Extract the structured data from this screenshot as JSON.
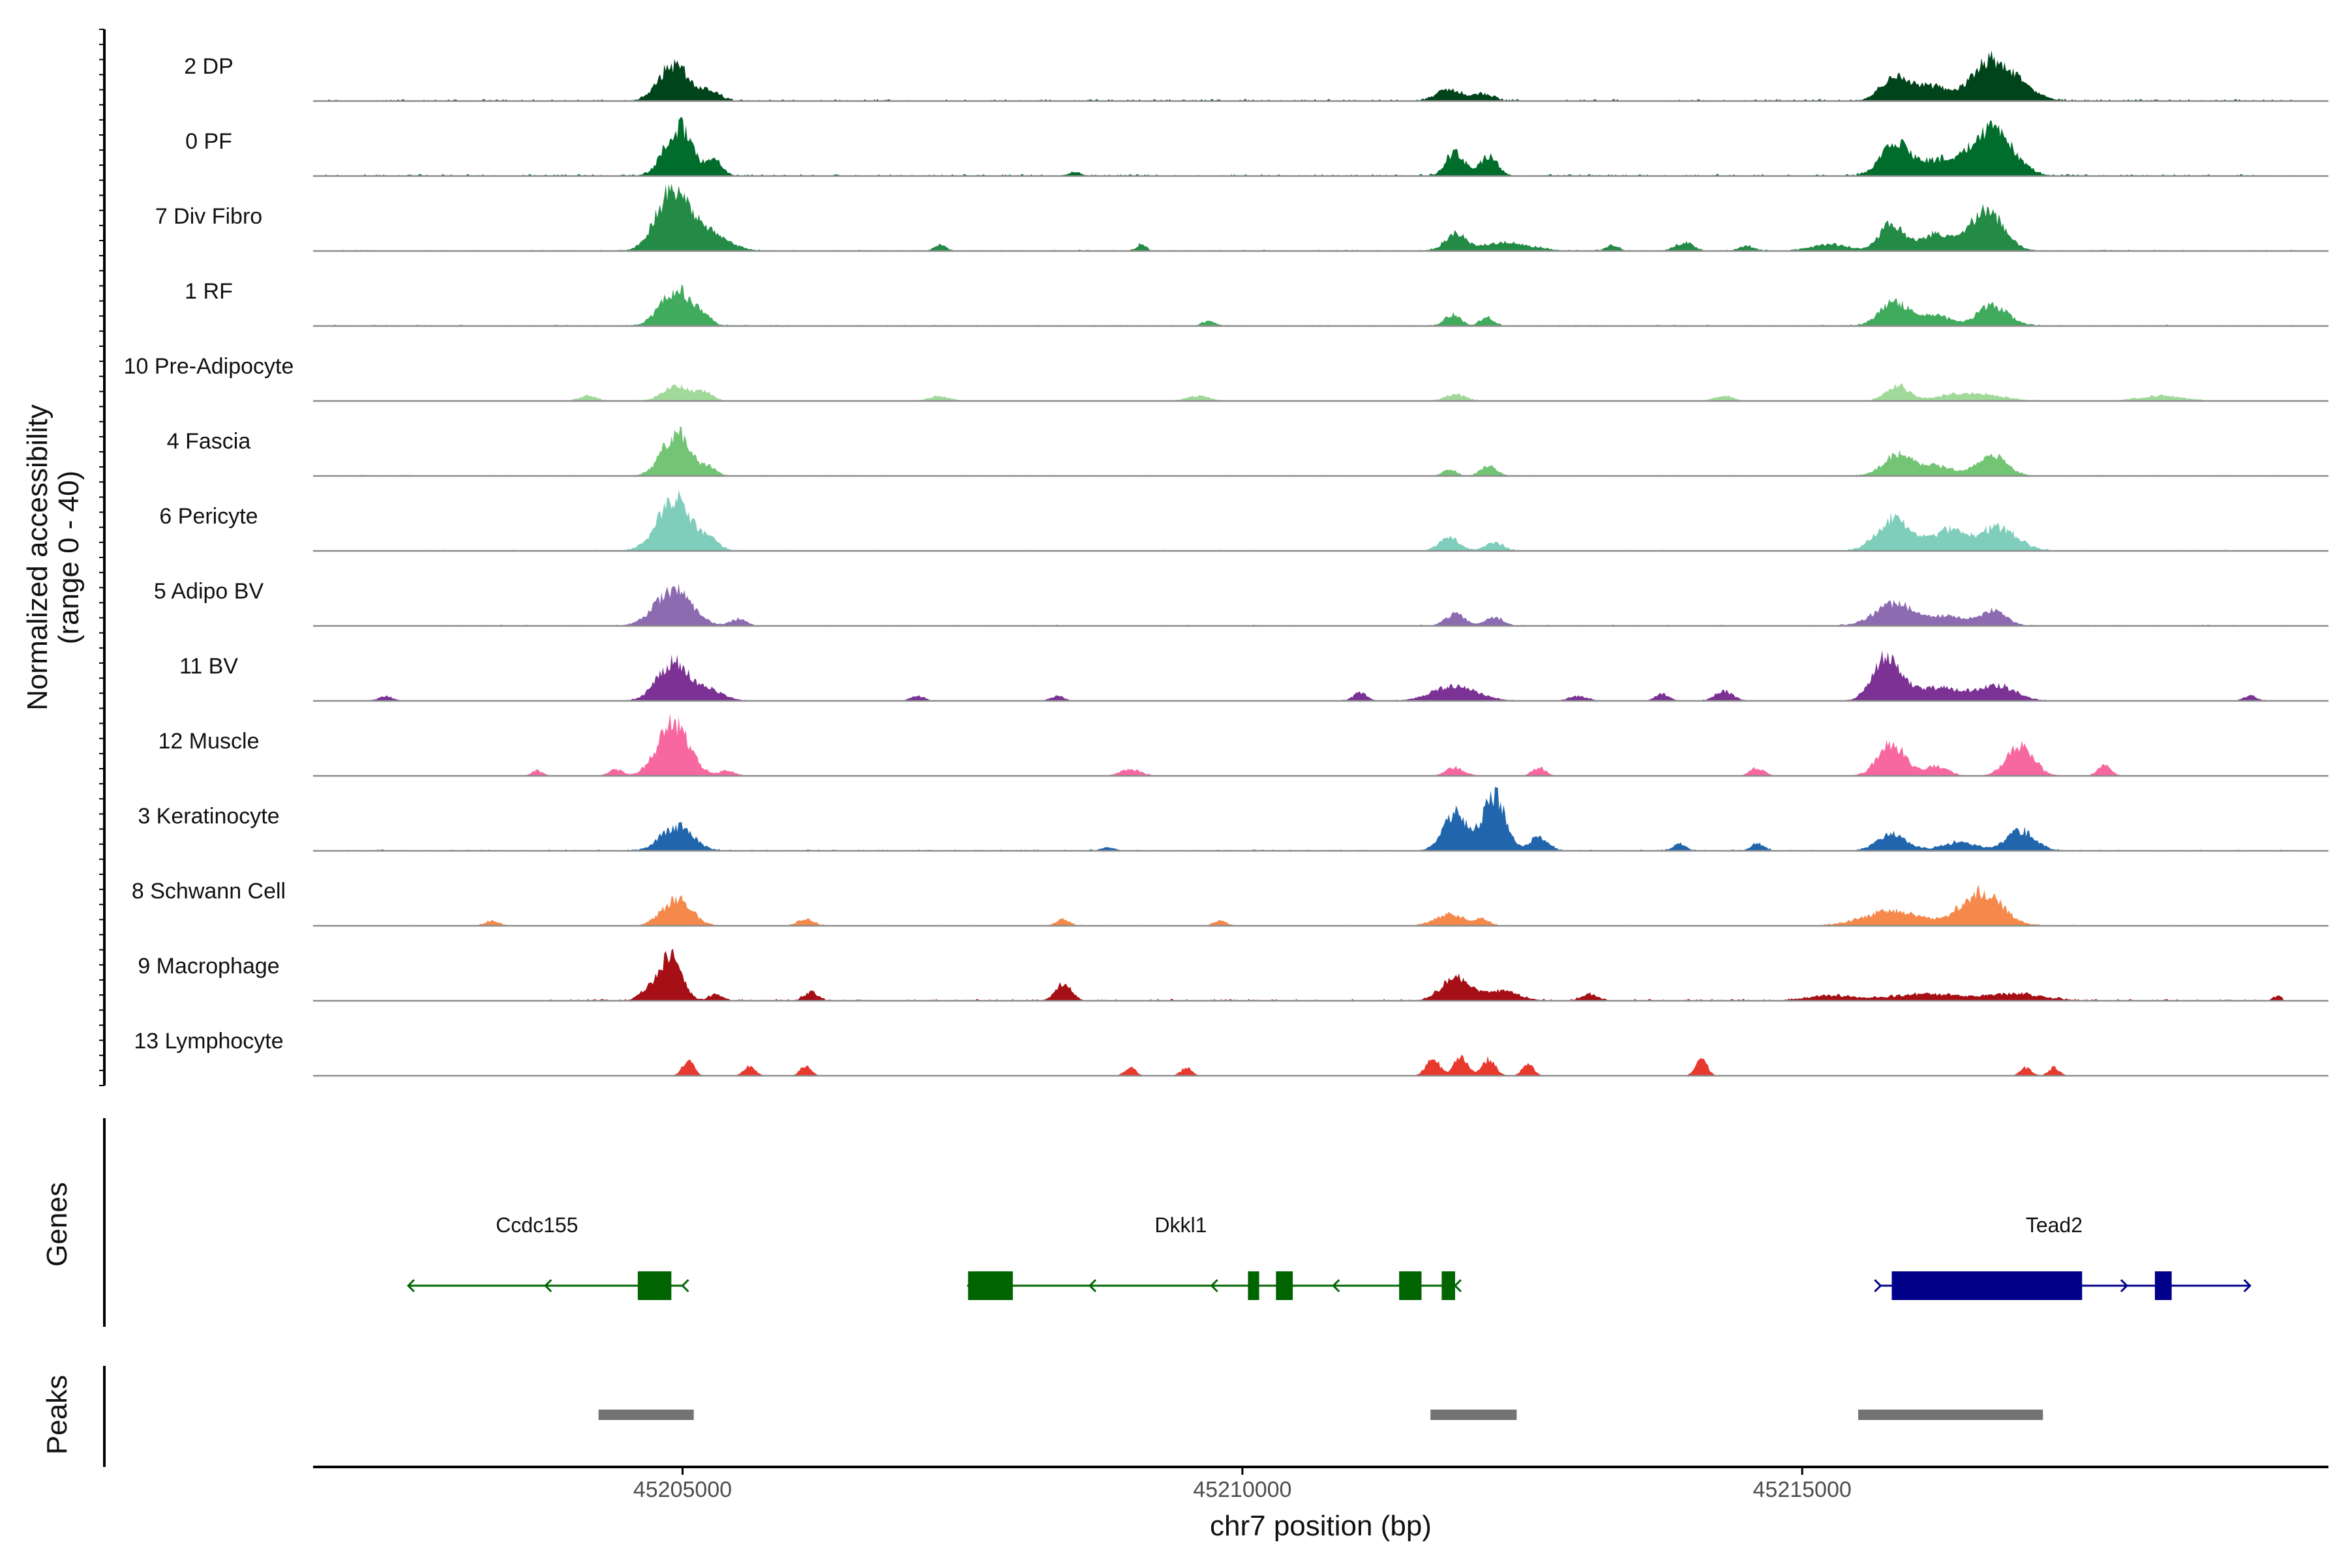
{
  "chart_data": {
    "type": "area",
    "title": "",
    "ylabel_line1": "Normalized accessibility",
    "ylabel_line2": "(range 0 - 40)",
    "ylim": [
      0,
      40
    ],
    "xlabel": "chr7 position (bp)",
    "xlim": [
      45201700,
      45219700
    ],
    "xticks": [
      {
        "value": 45205000,
        "label": "45205000"
      },
      {
        "value": 45210000,
        "label": "45210000"
      },
      {
        "value": 45215000,
        "label": "45215000"
      }
    ],
    "genes_label": "Genes",
    "peaks_label": "Peaks",
    "tracks": [
      {
        "name": "2 DP",
        "color": "#00441b",
        "noise": 1.2,
        "span": [
          45201800,
          45219400
        ],
        "peaks": [
          [
            45204920,
            130,
            22
          ],
          [
            45205250,
            80,
            6
          ],
          [
            45211850,
            110,
            7
          ],
          [
            45212150,
            90,
            4
          ],
          [
            45215820,
            120,
            14
          ],
          [
            45216150,
            160,
            9
          ],
          [
            45216700,
            170,
            25
          ],
          [
            45217000,
            140,
            5
          ]
        ]
      },
      {
        "name": "0 PF",
        "color": "#006d2c",
        "noise": 1.2,
        "span": [
          45201800,
          45219400
        ],
        "peaks": [
          [
            45204960,
            120,
            30
          ],
          [
            45205280,
            70,
            9
          ],
          [
            45211900,
            80,
            15
          ],
          [
            45212200,
            80,
            12
          ],
          [
            45215830,
            130,
            18
          ],
          [
            45216220,
            200,
            9
          ],
          [
            45216700,
            180,
            28
          ],
          [
            45208500,
            60,
            2
          ]
        ]
      },
      {
        "name": "7 Div Fibro",
        "color": "#238b45",
        "noise": 0.8,
        "span": [
          45201800,
          45219400
        ],
        "peaks": [
          [
            45204900,
            140,
            34
          ],
          [
            45205200,
            180,
            12
          ],
          [
            45207300,
            50,
            4
          ],
          [
            45209100,
            40,
            4
          ],
          [
            45211900,
            90,
            10
          ],
          [
            45212350,
            220,
            5
          ],
          [
            45213300,
            60,
            3
          ],
          [
            45213950,
            80,
            5
          ],
          [
            45214500,
            70,
            3
          ],
          [
            45215800,
            110,
            16
          ],
          [
            45216200,
            150,
            10
          ],
          [
            45216650,
            150,
            24
          ],
          [
            45215250,
            160,
            4
          ]
        ]
      },
      {
        "name": "1 RF",
        "color": "#41ab5d",
        "noise": 0.8,
        "span": [
          45201800,
          45219400
        ],
        "peaks": [
          [
            45204950,
            140,
            22
          ],
          [
            45205200,
            60,
            4
          ],
          [
            45211880,
            70,
            7
          ],
          [
            45212180,
            60,
            5
          ],
          [
            45215830,
            130,
            15
          ],
          [
            45216200,
            120,
            6
          ],
          [
            45216700,
            140,
            12
          ],
          [
            45209700,
            60,
            3
          ]
        ]
      },
      {
        "name": "10 Pre-Adipocyte",
        "color": "#a1d99b",
        "noise": 0.5,
        "span": [
          45203700,
          45219200
        ],
        "peaks": [
          [
            45204950,
            120,
            9
          ],
          [
            45205200,
            70,
            5
          ],
          [
            45204150,
            80,
            3
          ],
          [
            45207300,
            90,
            3
          ],
          [
            45209600,
            100,
            3
          ],
          [
            45211900,
            90,
            4
          ],
          [
            45215850,
            100,
            9
          ],
          [
            45216500,
            250,
            5
          ],
          [
            45218200,
            200,
            3
          ],
          [
            45214300,
            80,
            3
          ]
        ]
      },
      {
        "name": "4 Fascia",
        "color": "#74c476",
        "noise": 0.7,
        "span": [
          45201800,
          45219400
        ],
        "peaks": [
          [
            45204950,
            130,
            26
          ],
          [
            45205250,
            60,
            4
          ],
          [
            45211850,
            60,
            4
          ],
          [
            45212200,
            70,
            6
          ],
          [
            45215860,
            130,
            13
          ],
          [
            45216200,
            150,
            6
          ],
          [
            45216700,
            130,
            12
          ]
        ]
      },
      {
        "name": "6 Pericyte",
        "color": "#7fcdbb",
        "noise": 0.7,
        "span": [
          45201800,
          45219400
        ],
        "peaks": [
          [
            45204930,
            150,
            31
          ],
          [
            45205250,
            80,
            6
          ],
          [
            45211850,
            90,
            8
          ],
          [
            45212250,
            80,
            5
          ],
          [
            45215820,
            150,
            20
          ],
          [
            45216300,
            150,
            12
          ],
          [
            45216750,
            170,
            14
          ]
        ]
      },
      {
        "name": "5 Adipo BV",
        "color": "#8c6bb1",
        "noise": 0.7,
        "span": [
          45202300,
          45219400
        ],
        "peaks": [
          [
            45204920,
            160,
            22
          ],
          [
            45205500,
            70,
            4
          ],
          [
            45211900,
            90,
            7
          ],
          [
            45212250,
            80,
            5
          ],
          [
            45215820,
            170,
            14
          ],
          [
            45216300,
            150,
            6
          ],
          [
            45216700,
            120,
            9
          ]
        ]
      },
      {
        "name": "11 BV",
        "color": "#7b3294",
        "noise": 0.4,
        "span": [
          45202200,
          45219200
        ],
        "peaks": [
          [
            45204920,
            140,
            24
          ],
          [
            45205250,
            120,
            6
          ],
          [
            45207100,
            60,
            3
          ],
          [
            45208350,
            60,
            3
          ],
          [
            45211050,
            60,
            5
          ],
          [
            45211900,
            200,
            9
          ],
          [
            45213000,
            80,
            3
          ],
          [
            45213750,
            60,
            4
          ],
          [
            45214300,
            80,
            6
          ],
          [
            45215750,
            120,
            26
          ],
          [
            45216200,
            250,
            8
          ],
          [
            45216750,
            160,
            9
          ],
          [
            45219000,
            60,
            3
          ],
          [
            45202350,
            60,
            3
          ]
        ]
      },
      {
        "name": "12 Muscle",
        "color": "#f768a1",
        "noise": 0.3,
        "span": [
          45202300,
          45218300
        ],
        "peaks": [
          [
            45204920,
            140,
            32
          ],
          [
            45204400,
            60,
            4
          ],
          [
            45209000,
            90,
            4
          ],
          [
            45211900,
            80,
            5
          ],
          [
            45212650,
            60,
            5
          ],
          [
            45214600,
            60,
            5
          ],
          [
            45215800,
            120,
            20
          ],
          [
            45216200,
            100,
            6
          ],
          [
            45216950,
            120,
            18
          ],
          [
            45217700,
            60,
            6
          ],
          [
            45203700,
            50,
            3
          ],
          [
            45205400,
            70,
            3
          ]
        ]
      },
      {
        "name": "3 Keratinocyte",
        "color": "#2166ac",
        "noise": 0.8,
        "span": [
          45201800,
          45219400
        ],
        "peaks": [
          [
            45204950,
            140,
            15
          ],
          [
            45211900,
            110,
            22
          ],
          [
            45212250,
            100,
            33
          ],
          [
            45212650,
            80,
            8
          ],
          [
            45213900,
            60,
            4
          ],
          [
            45214600,
            60,
            4
          ],
          [
            45215800,
            130,
            10
          ],
          [
            45216400,
            150,
            5
          ],
          [
            45216950,
            130,
            12
          ],
          [
            45208800,
            60,
            2
          ]
        ]
      },
      {
        "name": "8 Schwann Cell",
        "color": "#f4894b",
        "noise": 0.6,
        "span": [
          45201900,
          45219400
        ],
        "peaks": [
          [
            45204950,
            130,
            16
          ],
          [
            45206100,
            70,
            4
          ],
          [
            45208400,
            60,
            4
          ],
          [
            45211850,
            130,
            7
          ],
          [
            45212150,
            60,
            4
          ],
          [
            45215800,
            250,
            9
          ],
          [
            45216600,
            180,
            21
          ],
          [
            45203300,
            60,
            3
          ],
          [
            45209800,
            60,
            3
          ]
        ]
      },
      {
        "name": "9 Macrophage",
        "color": "#a50f15",
        "noise": 1.1,
        "span": [
          45203700,
          45219300
        ],
        "peaks": [
          [
            45204900,
            90,
            28
          ],
          [
            45204700,
            80,
            7
          ],
          [
            45205300,
            60,
            4
          ],
          [
            45206150,
            60,
            5
          ],
          [
            45208400,
            70,
            10
          ],
          [
            45211900,
            120,
            14
          ],
          [
            45212300,
            160,
            6
          ],
          [
            45213100,
            70,
            4
          ],
          [
            45215250,
            200,
            3
          ],
          [
            45216100,
            300,
            4
          ],
          [
            45216900,
            250,
            4
          ],
          [
            45219250,
            40,
            3
          ]
        ]
      },
      {
        "name": "13 Lymphocyte",
        "color": "#e8392e",
        "noise": 0,
        "span": [
          45204500,
          45217400
        ],
        "peaks": [
          [
            45205050,
            50,
            10
          ],
          [
            45205600,
            50,
            6
          ],
          [
            45206100,
            50,
            6
          ],
          [
            45209000,
            50,
            5
          ],
          [
            45209500,
            50,
            5
          ],
          [
            45211700,
            60,
            11
          ],
          [
            45211950,
            60,
            12
          ],
          [
            45212200,
            60,
            10
          ],
          [
            45212550,
            50,
            7
          ],
          [
            45214100,
            50,
            11
          ],
          [
            45217000,
            50,
            5
          ],
          [
            45217250,
            50,
            5
          ]
        ]
      }
    ],
    "genes": [
      {
        "name": "Ccdc155",
        "strand": "-",
        "color": "#006400",
        "start": 45202550,
        "end": 45205000,
        "exons": [
          [
            45204600,
            45204900
          ]
        ],
        "label_pos": 45203700
      },
      {
        "name": "Dkkl1",
        "strand": "-",
        "color": "#006400",
        "start": 45207550,
        "end": 45211900,
        "exons": [
          [
            45207550,
            45207950
          ],
          [
            45210050,
            45210150
          ],
          [
            45210300,
            45210450
          ],
          [
            45211400,
            45211600
          ],
          [
            45211780,
            45211900
          ]
        ],
        "label_pos": 45209450
      },
      {
        "name": "Tead2",
        "strand": "+",
        "color": "#00008b",
        "start": 45215700,
        "end": 45219000,
        "exons": [
          [
            45215800,
            45217500
          ],
          [
            45218150,
            45218300
          ]
        ],
        "label_pos": 45217250
      }
    ],
    "peaks_track": [
      [
        45204250,
        45205100
      ],
      [
        45211680,
        45212450
      ],
      [
        45215500,
        45217150
      ]
    ]
  }
}
